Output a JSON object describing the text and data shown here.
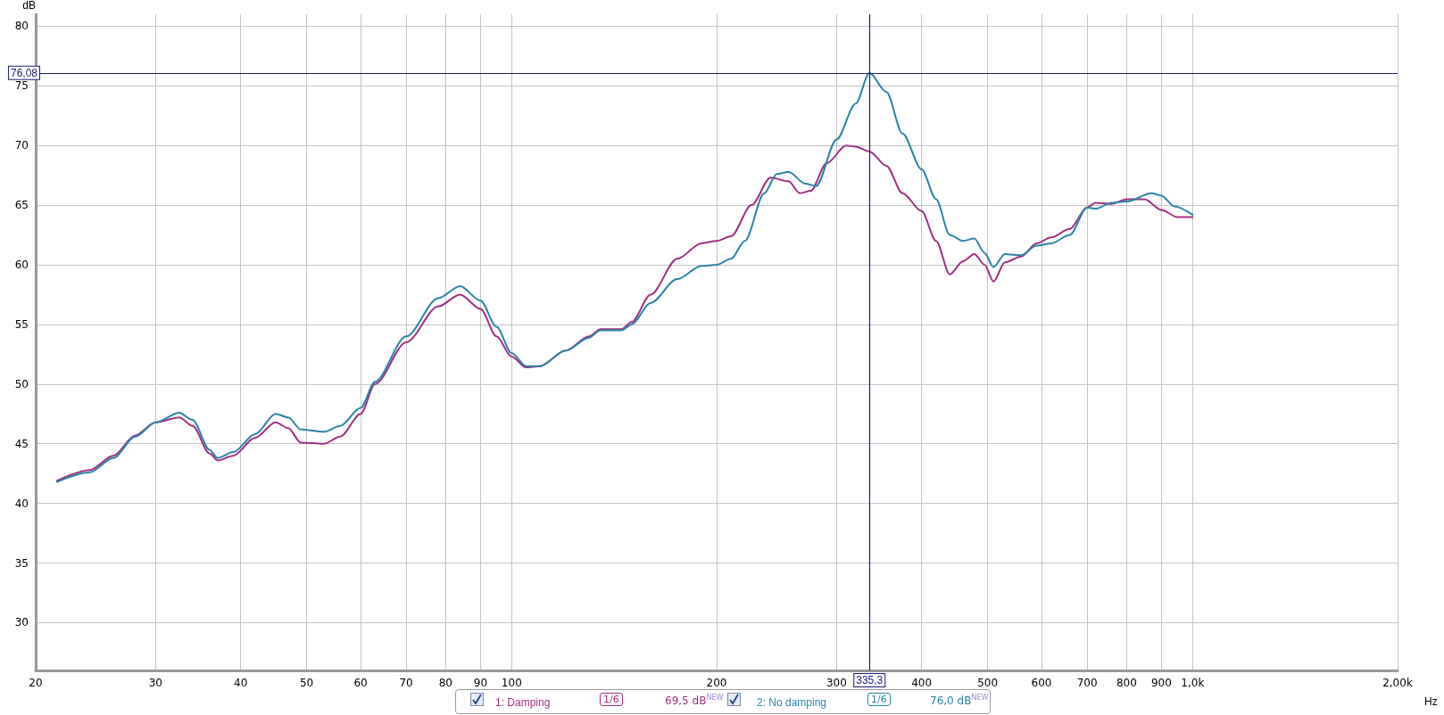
{
  "chart_data": {
    "type": "line",
    "xlabel": "Hz",
    "ylabel": "dB",
    "log": "x",
    "xlim": [
      20,
      2000
    ],
    "xticks": [
      20,
      30,
      40,
      50,
      60,
      70,
      80,
      90,
      100,
      200,
      300,
      400,
      500,
      600,
      700,
      800,
      900,
      {
        "value": 1000,
        "label": "1,0k"
      },
      {
        "value": 2000,
        "label": "2,00k"
      }
    ],
    "ylim": [
      26,
      81
    ],
    "yticks": [
      30,
      35,
      40,
      45,
      50,
      55,
      60,
      65,
      70,
      75,
      80
    ],
    "grid": true,
    "legend": "bottom",
    "marker": "none",
    "line_style": "solid",
    "series": [
      {
        "name": "1: Damping",
        "color": "#a0307f",
        "x": [
          21.5,
          24,
          26,
          28,
          30,
          32.5,
          34,
          36,
          37,
          39,
          42,
          45,
          47,
          49,
          53,
          56,
          60,
          63,
          70,
          78,
          84,
          90,
          95,
          100,
          105,
          110,
          120,
          130,
          135,
          145,
          150,
          160,
          175,
          190,
          200,
          210,
          225,
          240,
          255,
          265,
          275,
          290,
          310,
          320,
          335.3,
          355,
          375,
          400,
          420,
          440,
          460,
          478,
          495,
          510,
          530,
          560,
          590,
          620,
          660,
          700,
          720,
          760,
          800,
          850,
          900,
          950,
          1000
        ],
        "values": [
          41.9,
          42.8,
          44.0,
          45.7,
          46.8,
          47.2,
          46.5,
          44.2,
          43.6,
          44.0,
          45.5,
          46.8,
          46.3,
          45.1,
          45.0,
          45.6,
          47.5,
          50.0,
          53.5,
          56.5,
          57.5,
          56.3,
          54.0,
          52.3,
          51.4,
          51.5,
          52.8,
          54.0,
          54.6,
          54.6,
          55.2,
          57.5,
          60.5,
          61.8,
          62.0,
          62.4,
          65.0,
          67.3,
          67.0,
          66.0,
          66.2,
          68.5,
          70.0,
          69.9,
          69.5,
          68.3,
          66.0,
          64.5,
          62.0,
          59.2,
          60.3,
          60.9,
          60.0,
          58.6,
          60.2,
          60.7,
          61.8,
          62.3,
          63.0,
          64.8,
          65.2,
          65.1,
          65.5,
          65.5,
          64.6,
          64.0,
          64.0
        ]
      },
      {
        "name": "2: No damping",
        "color": "#2a84a6",
        "x": [
          21.5,
          24,
          26,
          28,
          30,
          32.5,
          34,
          36,
          37,
          39,
          42,
          45,
          47,
          49,
          53,
          56,
          60,
          63,
          70,
          78,
          84,
          90,
          95,
          100,
          105,
          110,
          120,
          130,
          135,
          145,
          150,
          160,
          175,
          190,
          200,
          210,
          220,
          235,
          245,
          255,
          270,
          280,
          300,
          320,
          335.3,
          355,
          375,
          400,
          420,
          440,
          460,
          478,
          495,
          510,
          530,
          560,
          590,
          620,
          660,
          700,
          720,
          760,
          800,
          870,
          900,
          940,
          1000
        ],
        "values": [
          41.8,
          42.6,
          43.8,
          45.6,
          46.8,
          47.6,
          47.0,
          44.5,
          43.8,
          44.3,
          45.8,
          47.5,
          47.2,
          46.2,
          46.0,
          46.5,
          48.0,
          50.2,
          54.0,
          57.2,
          58.2,
          57.0,
          54.8,
          52.6,
          51.5,
          51.5,
          52.8,
          53.9,
          54.5,
          54.5,
          55.0,
          56.8,
          58.8,
          59.9,
          60.0,
          60.5,
          62.0,
          66.0,
          67.6,
          67.8,
          66.8,
          66.6,
          70.5,
          73.5,
          76.08,
          74.5,
          71.0,
          68.0,
          65.5,
          62.5,
          62.0,
          62.2,
          61.0,
          59.8,
          60.9,
          60.8,
          61.6,
          61.8,
          62.5,
          64.8,
          64.7,
          65.2,
          65.3,
          66.0,
          65.8,
          64.9,
          64.2
        ]
      }
    ],
    "ref_lines": [
      {
        "axis": "y",
        "value": 76.08,
        "label": "76,08",
        "color": "#1c1c78"
      },
      {
        "axis": "x",
        "value": 335.3,
        "label": "335,3",
        "color": "#1c1c78"
      }
    ],
    "annotations": [
      "1/6",
      "69,5 dB$^{NEW}$",
      "1/6",
      "76,0 dB$^{NEW}$"
    ]
  }
}
